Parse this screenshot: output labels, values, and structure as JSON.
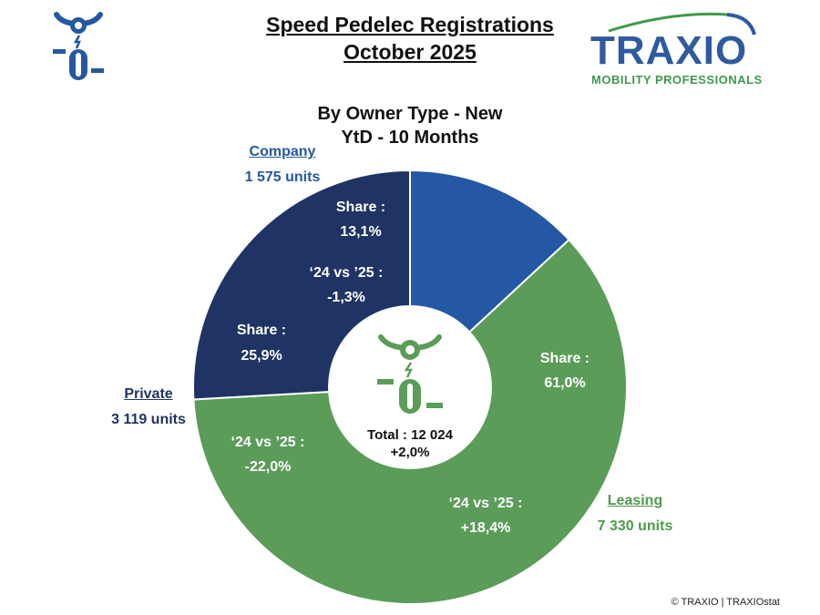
{
  "header": {
    "title_line1": "Speed Pedelec Registrations",
    "title_line2": "October 2025"
  },
  "brand": {
    "name": "TRAXIO",
    "tagline": "MOBILITY PROFESSIONALS",
    "blue": "#2f5aa0",
    "green": "#3e9a4a"
  },
  "chart_data": {
    "type": "pie",
    "variant": "donut",
    "title_line1": "By Owner Type - New",
    "title_line2": "YtD - 10 Months",
    "center_label": "Total : 12 024",
    "center_change": "+2,0%",
    "share_label": "Share :",
    "change_label": "‘24 vs ’25 :",
    "slices": [
      {
        "name": "Company",
        "units": 1575,
        "units_label": "1 575 units",
        "share": 13.1,
        "share_label": "13,1%",
        "change": -1.3,
        "change_label": "-1,3%",
        "color": "#2457a4"
      },
      {
        "name": "Leasing",
        "units": 7330,
        "units_label": "7 330 units",
        "share": 61.0,
        "share_label": "61,0%",
        "change": 18.4,
        "change_label": "+18,4%",
        "color": "#5a9c58"
      },
      {
        "name": "Private",
        "units": 3119,
        "units_label": "3 119 units",
        "share": 25.9,
        "share_label": "25,9%",
        "change": -22.0,
        "change_label": "-22,0%",
        "color": "#1f3464"
      }
    ]
  },
  "footer": {
    "credit": "© TRAXIO | TRAXIOstat"
  }
}
